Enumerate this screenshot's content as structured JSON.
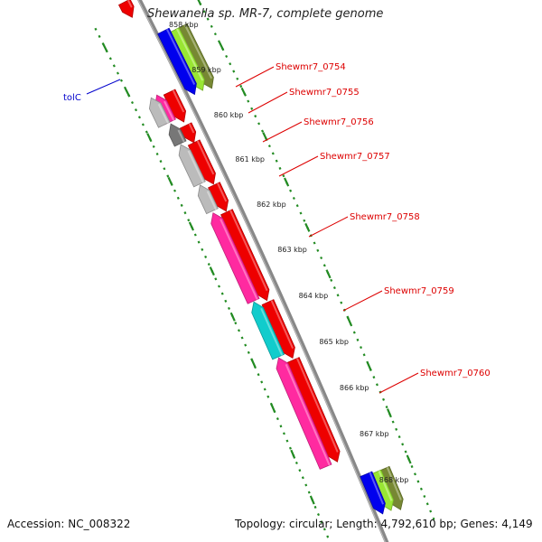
{
  "title": "Shewanella sp. MR-7, complete genome",
  "footer": {
    "accession": "Accession: NC_008322",
    "stats": "Topology: circular; Length: 4,792,610 bp; Genes: 4,149"
  },
  "scale_labels": [
    "858 kbp",
    "859 kbp",
    "860 kbp",
    "861 kbp",
    "862 kbp",
    "863 kbp",
    "864 kbp",
    "865 kbp",
    "866 kbp",
    "867 kbp",
    "868 kbp"
  ],
  "gene_labels": [
    {
      "text": "tolC",
      "color": "#0000cc"
    },
    {
      "text": "Shewmr7_0754",
      "color": "#dd0000"
    },
    {
      "text": "Shewmr7_0755",
      "color": "#dd0000"
    },
    {
      "text": "Shewmr7_0756",
      "color": "#dd0000"
    },
    {
      "text": "Shewmr7_0757",
      "color": "#dd0000"
    },
    {
      "text": "Shewmr7_0758",
      "color": "#dd0000"
    },
    {
      "text": "Shewmr7_0759",
      "color": "#dd0000"
    },
    {
      "text": "Shewmr7_0760",
      "color": "#dd0000"
    }
  ],
  "colors": {
    "backbone": "#888888",
    "ticks": "#228b22",
    "red": "#ee0000",
    "magenta": "#ff2aa0",
    "gray": "#bbbbbb",
    "dark_gray": "#777777",
    "cyan": "#11cccc",
    "blue": "#0000ee",
    "lime": "#99e633",
    "olive": "#778833"
  }
}
